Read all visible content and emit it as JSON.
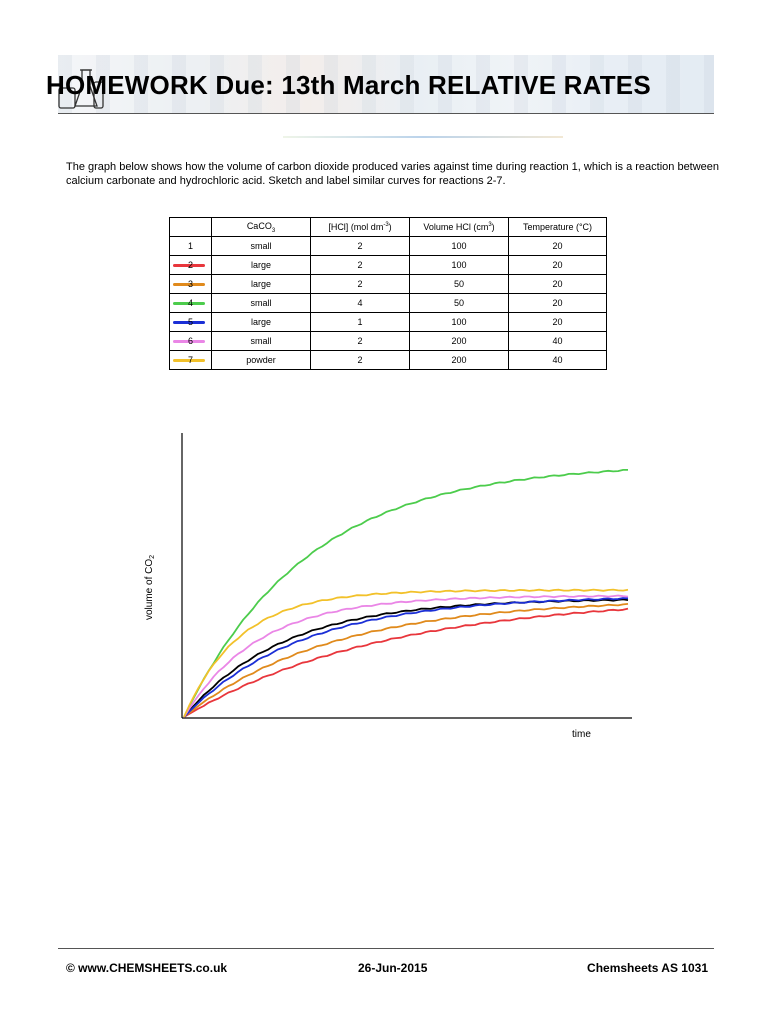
{
  "header": {
    "title": "HOMEWORK Due: 13th March RELATIVE RATES"
  },
  "intro": {
    "text": "The graph below shows how the volume of carbon dioxide produced varies against time during reaction 1, which is a reaction between calcium carbonate and hydrochloric acid.  Sketch and label similar curves for reactions 2-7."
  },
  "table": {
    "headers": {
      "caco3": "CaCO",
      "caco3_sub": "3",
      "hcl": "[HCl] (mol dm",
      "hcl_sup": "-3",
      "hcl_end": ")",
      "volume": "Volume HCl (cm",
      "volume_sup": "3",
      "volume_end": ")",
      "temperature": "Temperature (°C)"
    },
    "rows": [
      {
        "num": "1",
        "caco3": "small",
        "hcl": "2",
        "volume": "100",
        "temp": "20",
        "color": ""
      },
      {
        "num": "2",
        "caco3": "large",
        "hcl": "2",
        "volume": "100",
        "temp": "20",
        "color": "#e8363c"
      },
      {
        "num": "3",
        "caco3": "large",
        "hcl": "2",
        "volume": "50",
        "temp": "20",
        "color": "#e08a1c"
      },
      {
        "num": "4",
        "caco3": "small",
        "hcl": "4",
        "volume": "50",
        "temp": "20",
        "color": "#4ccc4c"
      },
      {
        "num": "5",
        "caco3": "large",
        "hcl": "1",
        "volume": "100",
        "temp": "20",
        "color": "#1b2fd6"
      },
      {
        "num": "6",
        "caco3": "small",
        "hcl": "2",
        "volume": "200",
        "temp": "40",
        "color": "#ea86e6"
      },
      {
        "num": "7",
        "caco3": "powder",
        "hcl": "2",
        "volume": "200",
        "temp": "40",
        "color": "#f2c12a"
      }
    ]
  },
  "chart_data": {
    "type": "line",
    "xlabel": "time",
    "ylabel": "volume of CO",
    "ylabel_sub": "2",
    "grid": false,
    "series": [
      {
        "name": "1",
        "color": "#000000",
        "plateau": 0.42,
        "rate": 4.5
      },
      {
        "name": "2",
        "color": "#e8363c",
        "plateau": 0.43,
        "rate": 2.2
      },
      {
        "name": "3",
        "color": "#e08a1c",
        "plateau": 0.42,
        "rate": 3.0
      },
      {
        "name": "4",
        "color": "#4ccc4c",
        "plateau": 0.9,
        "rate": 3.6
      },
      {
        "name": "5",
        "color": "#1b2fd6",
        "plateau": 0.43,
        "rate": 3.8
      },
      {
        "name": "6",
        "color": "#ea86e6",
        "plateau": 0.43,
        "rate": 6.0
      },
      {
        "name": "7",
        "color": "#f2c12a",
        "plateau": 0.45,
        "rate": 8.0
      }
    ]
  },
  "footer": {
    "left": "© www.CHEMSHEETS.co.uk",
    "center": "26-Jun-2015",
    "right": "Chemsheets AS 1031"
  }
}
